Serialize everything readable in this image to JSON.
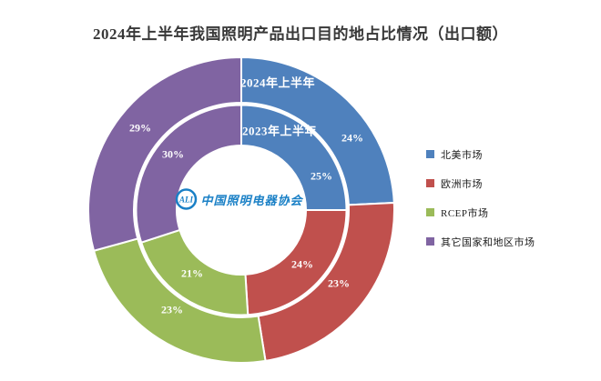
{
  "logo": {
    "mark_letters": "ALI",
    "name": "中国照明电器协会",
    "color": "#1a80c6"
  },
  "chart_data": {
    "type": "pie",
    "subtype": "nested-donut",
    "title": "2024年上半年我国照明产品出口目的地占比情况（出口额）",
    "unit": "%",
    "categories": [
      "北美市场",
      "欧洲市场",
      "RCEP市场",
      "其它国家和地区市场"
    ],
    "colors": [
      "#4f81bd",
      "#c0504d",
      "#9bbb59",
      "#8064a2"
    ],
    "series": [
      {
        "name": "2024年上半年",
        "ring": "outer",
        "values": [
          24,
          23,
          23,
          29
        ]
      },
      {
        "name": "2023年上半年",
        "ring": "inner",
        "values": [
          25,
          24,
          21,
          30
        ]
      }
    ],
    "data_labels": "percent",
    "legend_position": "right",
    "start_angle_deg": 0,
    "direction": "clockwise",
    "background": "#ffffff"
  }
}
